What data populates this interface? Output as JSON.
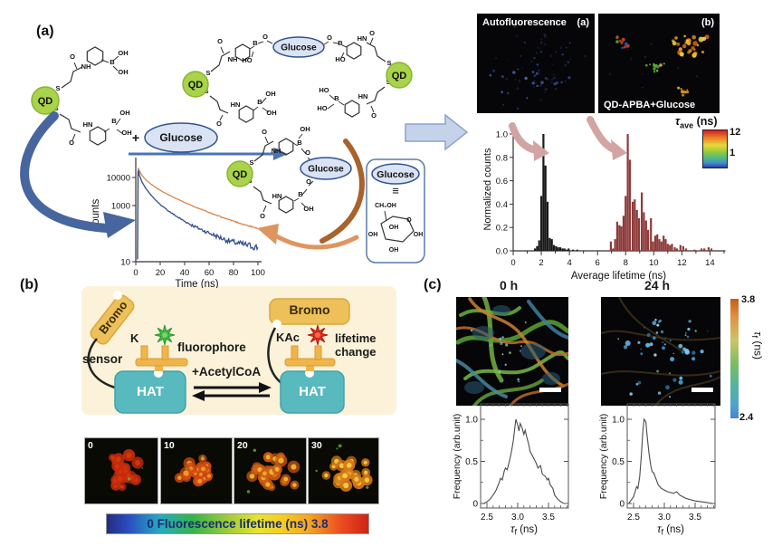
{
  "panels": {
    "a": {
      "label": "(a)",
      "scheme": {
        "qd": "QD",
        "glucose": "Glucose",
        "plus": "+",
        "equiv": "≡",
        "atoms": {
          "s": "S",
          "o": "O",
          "nh": "NH",
          "hn": "HN",
          "b": "B",
          "oh": "OH",
          "ho": "HO"
        },
        "sugar": {
          "ch2oh": "CH₂OH",
          "o": "O",
          "oh": "OH"
        }
      },
      "images": {
        "left_title": "Autofluorescence",
        "left_corner": "(a)",
        "right_corner": "(b)",
        "right_caption": "QD-APBA+Glucose"
      },
      "colorbar": {
        "sym": "τ",
        "sub": "ave",
        "units": " (ns)",
        "max": "12",
        "min": "1"
      }
    },
    "b": {
      "label": "(b)",
      "bromo": "Bromo",
      "sensor": "sensor",
      "k": "K",
      "kac": "KAc",
      "fluorophore": "fluorophore",
      "acetylcoa": "+AcetylCoA",
      "lifetime_line1": "lifetime",
      "lifetime_line2": "change",
      "hat": "HAT",
      "frames": [
        "0",
        "10",
        "20",
        "30"
      ],
      "colorbar_text": "0 Fluorescence lifetime (ns) 3.8"
    },
    "c": {
      "label": "(c)",
      "time0": "0 h",
      "time24": "24 h",
      "colorbar": {
        "max": "3.8",
        "min": "2.4",
        "sym": "τ",
        "sub": "f",
        "units": " (ns)"
      }
    }
  },
  "chart_data": [
    {
      "id": "decay",
      "type": "line",
      "xlabel": "Time (ns)",
      "ylabel": "Counts",
      "ylog": true,
      "xlim": [
        0,
        100
      ],
      "ylim": [
        10,
        25000
      ],
      "xticks": [
        0,
        20,
        40,
        60,
        80,
        100
      ],
      "yticks": [
        {
          "label": "10000",
          "v": 10000
        },
        {
          "label": "1000",
          "v": 1000
        },
        {
          "label": "10",
          "v": 10
        }
      ],
      "series": [
        {
          "name": "QD-APBA+Glucose",
          "color": "#d8854a",
          "noise": 0.06,
          "points": [
            [
              1.4,
              12
            ],
            [
              1.8,
              15000
            ],
            [
              2.2,
              22000
            ],
            [
              3,
              17000
            ],
            [
              5,
              12000
            ],
            [
              8,
              8500
            ],
            [
              12,
              6000
            ],
            [
              17,
              4200
            ],
            [
              22,
              3100
            ],
            [
              28,
              2300
            ],
            [
              34,
              1700
            ],
            [
              40,
              1300
            ],
            [
              47,
              950
            ],
            [
              54,
              720
            ],
            [
              62,
              520
            ],
            [
              70,
              390
            ],
            [
              78,
              300
            ],
            [
              86,
              230
            ],
            [
              93,
              185
            ],
            [
              100,
              150
            ]
          ]
        },
        {
          "name": "QD-APBA",
          "color": "#32508e",
          "noise": 0.3,
          "points": [
            [
              1.5,
              12
            ],
            [
              1.9,
              14000
            ],
            [
              2.3,
              18000
            ],
            [
              3,
              12000
            ],
            [
              5,
              7000
            ],
            [
              8,
              4200
            ],
            [
              12,
              2500
            ],
            [
              16,
              1600
            ],
            [
              21,
              1000
            ],
            [
              26,
              680
            ],
            [
              32,
              450
            ],
            [
              38,
              310
            ],
            [
              45,
              210
            ],
            [
              52,
              150
            ],
            [
              60,
              105
            ],
            [
              68,
              75
            ],
            [
              76,
              55
            ],
            [
              84,
              45
            ],
            [
              92,
              38
            ],
            [
              100,
              32
            ]
          ]
        }
      ]
    },
    {
      "id": "lifetime_histogram",
      "type": "bar",
      "xlabel": "Average lifetime (ns)",
      "ylabel": "Normalized counts",
      "xlim": [
        0,
        15
      ],
      "ylim": [
        0,
        1.05
      ],
      "xticks": [
        0,
        2,
        4,
        6,
        8,
        10,
        12,
        14
      ],
      "yticks": [
        "0.0",
        "0.2",
        "0.4",
        "0.6",
        "0.8",
        "1.0"
      ],
      "series": [
        {
          "name": "Autofluorescence",
          "color": "#1a1a1a",
          "bars": [
            [
              1.55,
              0.02
            ],
            [
              1.7,
              0.04
            ],
            [
              1.85,
              0.09
            ],
            [
              2.0,
              0.47
            ],
            [
              2.15,
              1.0
            ],
            [
              2.3,
              0.73
            ],
            [
              2.45,
              0.42
            ],
            [
              2.6,
              0.11
            ],
            [
              2.75,
              0.1
            ],
            [
              2.9,
              0.05
            ],
            [
              3.05,
              0.04
            ],
            [
              3.2,
              0.03
            ],
            [
              3.35,
              0.03
            ],
            [
              3.5,
              0.02
            ],
            [
              3.65,
              0.02
            ],
            [
              3.8,
              0.01
            ],
            [
              3.95,
              0.02
            ],
            [
              4.25,
              0.01
            ],
            [
              4.55,
              0.01
            ]
          ]
        },
        {
          "name": "QD-APBA+Glucose",
          "color": "#8e3b3b",
          "bars": [
            [
              6.95,
              0.08
            ],
            [
              7.1,
              0.02
            ],
            [
              7.25,
              0.1
            ],
            [
              7.4,
              0.25
            ],
            [
              7.55,
              0.22
            ],
            [
              7.7,
              0.21
            ],
            [
              7.85,
              0.3
            ],
            [
              8.0,
              0.47
            ],
            [
              8.15,
              1.0
            ],
            [
              8.3,
              0.78
            ],
            [
              8.5,
              0.42
            ],
            [
              8.65,
              0.44
            ],
            [
              8.8,
              0.35
            ],
            [
              8.95,
              0.28
            ],
            [
              9.15,
              0.5
            ],
            [
              9.3,
              0.33
            ],
            [
              9.45,
              0.26
            ],
            [
              9.6,
              0.18
            ],
            [
              9.8,
              0.28
            ],
            [
              9.95,
              0.08
            ],
            [
              10.1,
              0.13
            ],
            [
              10.25,
              0.14
            ],
            [
              10.4,
              0.1
            ],
            [
              10.55,
              0.08
            ],
            [
              10.7,
              0.13
            ],
            [
              10.85,
              0.1
            ],
            [
              11.0,
              0.06
            ],
            [
              11.15,
              0.05
            ],
            [
              11.3,
              0.06
            ],
            [
              11.5,
              0.03
            ],
            [
              11.65,
              0.02
            ],
            [
              11.9,
              0.05
            ],
            [
              12.1,
              0.04
            ],
            [
              12.3,
              0.02
            ],
            [
              12.9,
              0.01
            ],
            [
              13.4,
              0.02
            ],
            [
              13.6,
              0.02
            ],
            [
              13.9,
              0.03
            ],
            [
              14.1,
              0.02
            ]
          ]
        }
      ]
    },
    {
      "id": "freq_0h",
      "type": "line",
      "ylabel": "Frequency (arb.unit)",
      "xlabel_sym": "τ",
      "xlabel_sub": "f",
      "xlabel_units": " (ns)",
      "xlim": [
        2.4,
        3.82
      ],
      "ylim": [
        0,
        1.15
      ],
      "xticks": [
        "2.5",
        "3.0",
        "3.5"
      ],
      "yticks": [
        "0",
        "0.5",
        "1.0"
      ],
      "series": [
        {
          "name": "0 h",
          "color": "#4a4a4a",
          "points": [
            [
              2.45,
              0.0
            ],
            [
              2.5,
              0.02
            ],
            [
              2.55,
              0.05
            ],
            [
              2.6,
              0.1
            ],
            [
              2.65,
              0.16
            ],
            [
              2.7,
              0.25
            ],
            [
              2.72,
              0.3
            ],
            [
              2.75,
              0.28
            ],
            [
              2.78,
              0.38
            ],
            [
              2.8,
              0.42
            ],
            [
              2.83,
              0.4
            ],
            [
              2.87,
              0.52
            ],
            [
              2.9,
              0.62
            ],
            [
              2.93,
              0.75
            ],
            [
              2.95,
              0.88
            ],
            [
              2.97,
              1.0
            ],
            [
              3.0,
              0.93
            ],
            [
              3.02,
              0.86
            ],
            [
              3.04,
              0.95
            ],
            [
              3.07,
              0.9
            ],
            [
              3.1,
              0.82
            ],
            [
              3.12,
              0.87
            ],
            [
              3.15,
              0.78
            ],
            [
              3.18,
              0.7
            ],
            [
              3.2,
              0.62
            ],
            [
              3.25,
              0.55
            ],
            [
              3.3,
              0.48
            ],
            [
              3.33,
              0.42
            ],
            [
              3.37,
              0.45
            ],
            [
              3.4,
              0.35
            ],
            [
              3.45,
              0.32
            ],
            [
              3.48,
              0.28
            ],
            [
              3.5,
              0.3
            ],
            [
              3.53,
              0.22
            ],
            [
              3.57,
              0.18
            ],
            [
              3.6,
              0.1
            ],
            [
              3.65,
              0.05
            ],
            [
              3.7,
              0.02
            ],
            [
              3.75,
              0.0
            ]
          ]
        }
      ]
    },
    {
      "id": "freq_24h",
      "type": "line",
      "ylabel": "Frequency (arb.unit)",
      "xlabel_sym": "τ",
      "xlabel_sub": "f",
      "xlabel_units": " (ns)",
      "xlim": [
        2.4,
        3.82
      ],
      "ylim": [
        0,
        1.15
      ],
      "xticks": [
        "2.5",
        "3.0",
        "3.5"
      ],
      "yticks": [
        "0",
        "0.5",
        "1.0"
      ],
      "series": [
        {
          "name": "24 h",
          "color": "#4a4a4a",
          "points": [
            [
              2.42,
              0.0
            ],
            [
              2.46,
              0.04
            ],
            [
              2.5,
              0.08
            ],
            [
              2.53,
              0.15
            ],
            [
              2.55,
              0.2
            ],
            [
              2.57,
              0.18
            ],
            [
              2.6,
              0.32
            ],
            [
              2.63,
              0.6
            ],
            [
              2.65,
              0.85
            ],
            [
              2.67,
              1.0
            ],
            [
              2.7,
              0.97
            ],
            [
              2.72,
              0.8
            ],
            [
              2.75,
              0.6
            ],
            [
              2.78,
              0.45
            ],
            [
              2.8,
              0.38
            ],
            [
              2.83,
              0.36
            ],
            [
              2.86,
              0.3
            ],
            [
              2.9,
              0.22
            ],
            [
              2.95,
              0.18
            ],
            [
              3.0,
              0.16
            ],
            [
              3.05,
              0.14
            ],
            [
              3.1,
              0.13
            ],
            [
              3.15,
              0.12
            ],
            [
              3.2,
              0.14
            ],
            [
              3.25,
              0.1
            ],
            [
              3.3,
              0.08
            ],
            [
              3.35,
              0.06
            ],
            [
              3.4,
              0.05
            ],
            [
              3.5,
              0.03
            ],
            [
              3.6,
              0.02
            ],
            [
              3.7,
              0.01
            ],
            [
              3.78,
              0.0
            ]
          ]
        }
      ]
    }
  ]
}
